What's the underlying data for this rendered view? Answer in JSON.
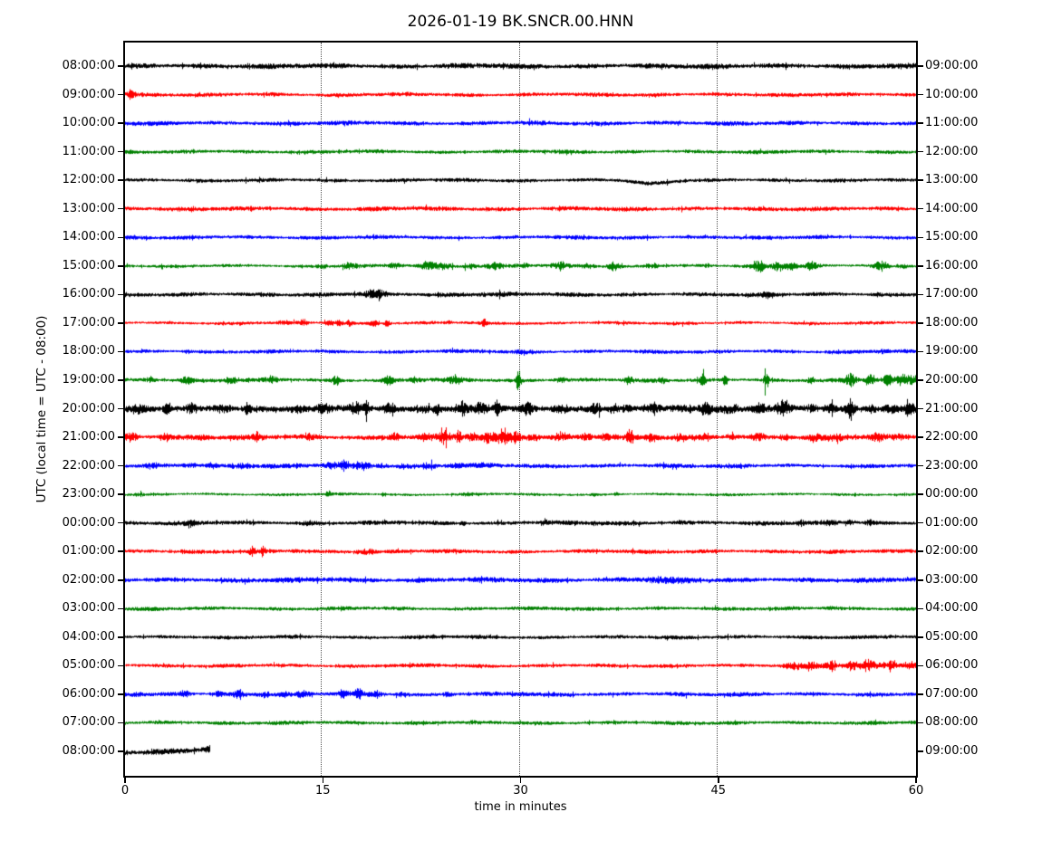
{
  "figure": {
    "title": "2026-01-19 BK.SNCR.00.HNN",
    "xlabel": "time in minutes",
    "ylabel": "UTC (local time = UTC - 08:00)"
  },
  "colors": {
    "black": "#000000",
    "red": "#ff0000",
    "blue": "#0000ff",
    "green": "#008000",
    "frame": "#000000",
    "grid": "#333333"
  },
  "chart_data": {
    "type": "line",
    "subtype": "seismogram-dayplot",
    "title": "2026-01-19 BK.SNCR.00.HNN",
    "xlabel": "time in minutes",
    "ylabel": "UTC (local time = UTC - 08:00)",
    "xlim": [
      0,
      60
    ],
    "x_ticks": [
      0,
      15,
      30,
      45,
      60
    ],
    "x_gridlines_minutes": [
      15,
      30,
      45
    ],
    "grid": "dotted-vertical",
    "trace_color_cycle": [
      "#000000",
      "#ff0000",
      "#0000ff",
      "#008000"
    ],
    "rows": [
      {
        "utc_start": "08:00:00",
        "utc_end": "09:00:00",
        "color": "black",
        "base": 2.6,
        "duration": 60,
        "events": []
      },
      {
        "utc_start": "09:00:00",
        "utc_end": "10:00:00",
        "color": "red",
        "base": 2.0,
        "duration": 60,
        "events": [
          [
            0.4,
            4,
            0.2
          ]
        ]
      },
      {
        "utc_start": "10:00:00",
        "utc_end": "11:00:00",
        "color": "blue",
        "base": 2.2,
        "duration": 60,
        "events": []
      },
      {
        "utc_start": "11:00:00",
        "utc_end": "12:00:00",
        "color": "green",
        "base": 1.9,
        "duration": 60,
        "events": []
      },
      {
        "utc_start": "12:00:00",
        "utc_end": "13:00:00",
        "color": "black",
        "base": 1.9,
        "duration": 60,
        "events": [],
        "dips": [
          [
            39.8,
            3,
            1.2
          ]
        ]
      },
      {
        "utc_start": "13:00:00",
        "utc_end": "14:00:00",
        "color": "red",
        "base": 2.2,
        "duration": 60,
        "events": []
      },
      {
        "utc_start": "14:00:00",
        "utc_end": "15:00:00",
        "color": "blue",
        "base": 2.0,
        "duration": 60,
        "events": []
      },
      {
        "utc_start": "15:00:00",
        "utc_end": "16:00:00",
        "color": "green",
        "base": 1.6,
        "duration": 60,
        "events": [
          [
            15,
            1.5,
            0.3
          ],
          [
            17,
            2.5,
            0.4
          ],
          [
            20.5,
            2.5,
            0.3
          ],
          [
            23,
            3,
            0.5
          ],
          [
            24.3,
            3,
            0.4
          ],
          [
            26,
            2.5,
            0.4
          ],
          [
            28,
            2.5,
            0.5
          ],
          [
            30,
            2.5,
            0.4
          ],
          [
            33,
            2.5,
            0.4
          ],
          [
            35,
            2,
            0.4
          ],
          [
            37,
            3,
            0.3
          ],
          [
            40,
            2.5,
            0.4
          ],
          [
            44,
            1.5,
            0.4
          ],
          [
            48,
            4,
            0.4
          ],
          [
            49.5,
            4,
            0.3
          ],
          [
            50.5,
            3,
            0.3
          ],
          [
            52,
            2.5,
            0.3
          ],
          [
            57.3,
            3.5,
            0.4
          ],
          [
            59,
            2,
            0.3
          ]
        ]
      },
      {
        "utc_start": "16:00:00",
        "utc_end": "17:00:00",
        "color": "black",
        "base": 2.1,
        "duration": 60,
        "events": [
          [
            11,
            1,
            0.3
          ],
          [
            19,
            3,
            0.5
          ],
          [
            26.5,
            1.2,
            1.5
          ],
          [
            48.7,
            2,
            0.2
          ],
          [
            57,
            1,
            0.2
          ]
        ]
      },
      {
        "utc_start": "17:00:00",
        "utc_end": "18:00:00",
        "color": "red",
        "base": 1.6,
        "duration": 60,
        "events": [
          [
            12,
            1,
            0.3
          ],
          [
            13.5,
            2,
            0.2
          ],
          [
            15.4,
            3,
            0.25
          ],
          [
            16.2,
            3,
            0.25
          ],
          [
            17,
            2.5,
            0.2
          ],
          [
            18.9,
            2.5,
            0.25
          ],
          [
            19.9,
            4.5,
            0.15
          ],
          [
            24.5,
            1,
            0.2
          ],
          [
            27.2,
            2.5,
            0.15
          ],
          [
            30,
            1,
            0.3
          ]
        ]
      },
      {
        "utc_start": "18:00:00",
        "utc_end": "19:00:00",
        "color": "blue",
        "base": 1.9,
        "duration": 60,
        "events": [
          [
            4.7,
            2.5,
            0.15
          ],
          [
            30,
            0.8,
            1
          ],
          [
            57.5,
            1.5,
            0.3
          ]
        ]
      },
      {
        "utc_start": "19:00:00",
        "utc_end": "20:00:00",
        "color": "green",
        "base": 2.0,
        "duration": 60,
        "events": [
          [
            2,
            1.5,
            0.3
          ],
          [
            4.6,
            2.5,
            0.3
          ],
          [
            8,
            3,
            0.3
          ],
          [
            11,
            2.5,
            0.25
          ],
          [
            16,
            4,
            0.2
          ],
          [
            20,
            2.5,
            0.3
          ],
          [
            22,
            2,
            0.3
          ],
          [
            25,
            2.5,
            0.3
          ],
          [
            29.8,
            12,
            0.12
          ],
          [
            33,
            2,
            0.3
          ],
          [
            38.2,
            3.5,
            0.2
          ],
          [
            40.7,
            2,
            0.2
          ],
          [
            43.8,
            9,
            0.12
          ],
          [
            45.5,
            6,
            0.15
          ],
          [
            48.6,
            9.5,
            0.12
          ],
          [
            52,
            4,
            0.15
          ],
          [
            55,
            4,
            0.3
          ],
          [
            56.5,
            5,
            0.25
          ],
          [
            57.8,
            5,
            0.25
          ],
          [
            59,
            5,
            0.3
          ],
          [
            59.8,
            4,
            0.2
          ]
        ]
      },
      {
        "utc_start": "20:00:00",
        "utc_end": "21:00:00",
        "color": "black",
        "base": 3.0,
        "duration": 60,
        "events": [
          [
            1,
            2,
            0.4
          ],
          [
            3.2,
            6,
            0.2
          ],
          [
            5,
            3,
            0.3
          ],
          [
            7.5,
            4,
            0.4
          ],
          [
            9.2,
            6,
            0.2
          ],
          [
            13,
            3,
            0.4
          ],
          [
            15,
            2.5,
            0.4
          ],
          [
            17.5,
            4,
            0.4
          ],
          [
            18.3,
            6,
            0.18
          ],
          [
            20,
            3,
            0.3
          ],
          [
            22.5,
            4,
            0.4
          ],
          [
            23.6,
            5,
            0.25
          ],
          [
            25.6,
            5,
            0.3
          ],
          [
            27,
            5,
            0.4
          ],
          [
            28.2,
            7,
            0.2
          ],
          [
            30.5,
            4,
            0.25
          ],
          [
            33,
            3,
            0.4
          ],
          [
            35.5,
            4,
            0.4
          ],
          [
            37,
            5,
            0.3
          ],
          [
            38,
            4,
            0.3
          ],
          [
            40,
            3,
            0.4
          ],
          [
            42,
            3,
            0.4
          ],
          [
            44,
            4,
            0.3
          ],
          [
            46,
            3,
            0.4
          ],
          [
            48,
            3,
            0.4
          ],
          [
            50,
            5,
            0.4
          ],
          [
            52,
            4,
            0.4
          ],
          [
            53.5,
            4,
            0.3
          ],
          [
            55,
            7,
            0.25
          ],
          [
            56.5,
            4,
            0.3
          ],
          [
            58,
            4,
            0.3
          ],
          [
            59.5,
            3,
            0.3
          ]
        ]
      },
      {
        "utc_start": "21:00:00",
        "utc_end": "22:00:00",
        "color": "red",
        "base": 2.6,
        "duration": 60,
        "events": [
          [
            0.5,
            3,
            0.3
          ],
          [
            3,
            2.5,
            0.3
          ],
          [
            6,
            1.5,
            0.3
          ],
          [
            10,
            2,
            0.3
          ],
          [
            14,
            1.5,
            0.3
          ],
          [
            20.5,
            3,
            0.25
          ],
          [
            22.7,
            3,
            0.25
          ],
          [
            24.2,
            3.5,
            0.3
          ],
          [
            25.3,
            7,
            0.1
          ],
          [
            26.3,
            3.5,
            0.3
          ],
          [
            27.5,
            4,
            0.3
          ],
          [
            28.5,
            4,
            0.3
          ],
          [
            29.5,
            4,
            0.4
          ],
          [
            31,
            3,
            0.4
          ],
          [
            33,
            3,
            0.4
          ],
          [
            35,
            3,
            0.3
          ],
          [
            36.5,
            2.5,
            0.3
          ],
          [
            38.3,
            4,
            0.2
          ],
          [
            40,
            2.5,
            0.3
          ],
          [
            42,
            2.5,
            0.3
          ],
          [
            44,
            3,
            0.25
          ],
          [
            46,
            2.5,
            0.3
          ],
          [
            48,
            3,
            0.3
          ],
          [
            50,
            2.5,
            0.3
          ],
          [
            52.3,
            2.5,
            0.25
          ],
          [
            54,
            2,
            0.3
          ],
          [
            57,
            2.5,
            0.3
          ],
          [
            59,
            2,
            0.3
          ]
        ]
      },
      {
        "utc_start": "22:00:00",
        "utc_end": "23:00:00",
        "color": "blue",
        "base": 2.1,
        "duration": 60,
        "events": [
          [
            2,
            1.5,
            0.4
          ],
          [
            5,
            2,
            0.4
          ],
          [
            6.5,
            2,
            0.3
          ],
          [
            9,
            2.5,
            0.4
          ],
          [
            11,
            1.5,
            0.4
          ],
          [
            15.5,
            2.5,
            0.3
          ],
          [
            16.6,
            3.5,
            0.3
          ],
          [
            18,
            3,
            0.4
          ],
          [
            19.5,
            2.5,
            0.3
          ],
          [
            21,
            2,
            0.4
          ],
          [
            23,
            2,
            0.4
          ],
          [
            25,
            1.8,
            0.4
          ],
          [
            27,
            1,
            0.5
          ]
        ]
      },
      {
        "utc_start": "23:00:00",
        "utc_end": "00:00:00",
        "color": "green",
        "base": 1.4,
        "duration": 60,
        "events": [
          [
            1,
            1.5,
            0.2
          ],
          [
            15.4,
            2.2,
            0.15
          ],
          [
            19.6,
            2.8,
            0.12
          ],
          [
            26,
            0.8,
            0.5
          ],
          [
            35.6,
            2,
            0.12
          ],
          [
            37.2,
            1.5,
            0.15
          ],
          [
            54,
            0.8,
            0.3
          ]
        ]
      },
      {
        "utc_start": "00:00:00",
        "utc_end": "01:00:00",
        "color": "black",
        "base": 2.1,
        "duration": 60,
        "events": [
          [
            5,
            1,
            0.4
          ],
          [
            14,
            1,
            0.4
          ],
          [
            25.6,
            2.5,
            0.15
          ],
          [
            31.8,
            2.5,
            0.15
          ],
          [
            36,
            1,
            0.4
          ],
          [
            42,
            1.5,
            0.3
          ],
          [
            51.3,
            2,
            0.25
          ],
          [
            53.5,
            2.5,
            0.25
          ],
          [
            55,
            2.5,
            0.25
          ],
          [
            56.5,
            2,
            0.25
          ]
        ]
      },
      {
        "utc_start": "01:00:00",
        "utc_end": "02:00:00",
        "color": "red",
        "base": 2.0,
        "duration": 60,
        "events": [
          [
            4.5,
            1.5,
            0.2
          ],
          [
            9.6,
            3,
            0.18
          ],
          [
            10.4,
            3,
            0.18
          ],
          [
            13,
            1,
            0.3
          ],
          [
            18.2,
            2.5,
            0.5
          ]
        ]
      },
      {
        "utc_start": "02:00:00",
        "utc_end": "03:00:00",
        "color": "blue",
        "base": 2.5,
        "duration": 60,
        "events": [
          [
            40.5,
            1.5,
            1.2
          ]
        ]
      },
      {
        "utc_start": "03:00:00",
        "utc_end": "04:00:00",
        "color": "green",
        "base": 1.9,
        "duration": 60,
        "events": [
          [
            53.5,
            1,
            0.4
          ]
        ]
      },
      {
        "utc_start": "04:00:00",
        "utc_end": "05:00:00",
        "color": "black",
        "base": 1.9,
        "duration": 60,
        "events": []
      },
      {
        "utc_start": "05:00:00",
        "utc_end": "06:00:00",
        "color": "red",
        "base": 1.9,
        "duration": 60,
        "events": [
          [
            50.5,
            2,
            0.4
          ],
          [
            52,
            2.5,
            0.4
          ],
          [
            53.5,
            3,
            0.4
          ],
          [
            55,
            3,
            0.4
          ],
          [
            56.5,
            3.5,
            0.4
          ],
          [
            58,
            3.5,
            0.4
          ],
          [
            59.5,
            3.5,
            0.4
          ]
        ]
      },
      {
        "utc_start": "06:00:00",
        "utc_end": "07:00:00",
        "color": "blue",
        "base": 2.1,
        "duration": 60,
        "events": [
          [
            1,
            1.5,
            0.3
          ],
          [
            4.5,
            2,
            0.3
          ],
          [
            7,
            2.5,
            0.3
          ],
          [
            8.6,
            3,
            0.3
          ],
          [
            10.5,
            2.8,
            0.3
          ],
          [
            12,
            2,
            0.3
          ],
          [
            13.5,
            2,
            0.3
          ],
          [
            16.5,
            3,
            0.3
          ],
          [
            17.7,
            3,
            0.25
          ],
          [
            19,
            2.5,
            0.3
          ],
          [
            21,
            2.2,
            0.3
          ],
          [
            24.5,
            2,
            0.25
          ],
          [
            30,
            1,
            0.3
          ]
        ]
      },
      {
        "utc_start": "07:00:00",
        "utc_end": "08:00:00",
        "color": "green",
        "base": 1.9,
        "duration": 60,
        "events": []
      },
      {
        "utc_start": "08:00:00",
        "utc_end": "09:00:00",
        "color": "black",
        "base": 2.8,
        "duration": 6.4,
        "events": [
          [
            6.2,
            1.5,
            0.2
          ]
        ],
        "y_offset": 1.5,
        "drift": -3.5
      }
    ]
  }
}
